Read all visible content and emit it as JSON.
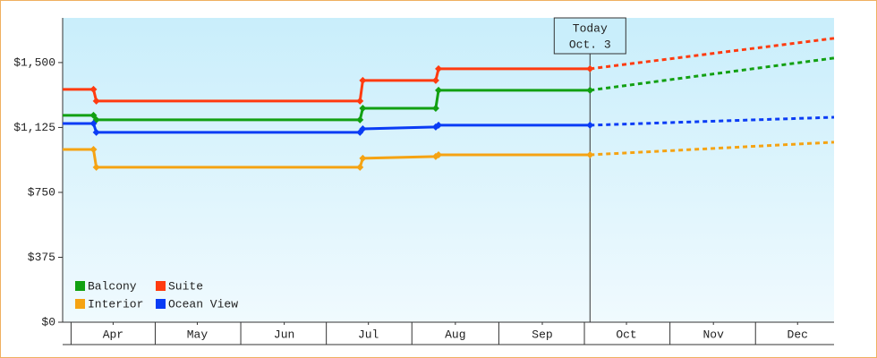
{
  "chart_data": {
    "type": "line",
    "x": [
      88,
      99,
      100,
      194,
      195,
      221,
      222,
      276
    ],
    "forecast_x": [
      276,
      363
    ],
    "series": [
      {
        "name": "Balcony",
        "color": "#12a012",
        "values": [
          1195,
          1195,
          1169,
          1169,
          1236,
          1236,
          1340,
          1340
        ],
        "forecast": [
          1340,
          1526
        ]
      },
      {
        "name": "Suite",
        "color": "#ff3b10",
        "values": [
          1345,
          1345,
          1278,
          1278,
          1397,
          1397,
          1464,
          1464
        ],
        "forecast": [
          1464,
          1640
        ]
      },
      {
        "name": "Interior",
        "color": "#f5a313",
        "values": [
          998,
          998,
          895,
          895,
          947,
          957,
          967,
          967
        ],
        "forecast": [
          967,
          1040
        ]
      },
      {
        "name": "Ocean View",
        "color": "#0a3cf5",
        "values": [
          1148,
          1148,
          1097,
          1097,
          1117,
          1128,
          1138,
          1138
        ],
        "forecast": [
          1138,
          1184
        ]
      }
    ],
    "xlim": [
      88,
      363
    ],
    "ylim": [
      0,
      1758
    ],
    "yticks": [
      {
        "value": 0,
        "label": "$0"
      },
      {
        "value": 375,
        "label": "$375"
      },
      {
        "value": 750,
        "label": "$750"
      },
      {
        "value": 1125,
        "label": "$1,125"
      },
      {
        "value": 1500,
        "label": "$1,500"
      }
    ],
    "xticks": [
      {
        "value": 106,
        "label": "Apr"
      },
      {
        "value": 136,
        "label": "May"
      },
      {
        "value": 167,
        "label": "Jun"
      },
      {
        "value": 197,
        "label": "Jul"
      },
      {
        "value": 228,
        "label": "Aug"
      },
      {
        "value": 259,
        "label": "Sep"
      },
      {
        "value": 289,
        "label": "Oct"
      },
      {
        "value": 320,
        "label": "Nov"
      },
      {
        "value": 350,
        "label": "Dec"
      }
    ],
    "annotation": {
      "x": 276,
      "lines": [
        "Today",
        "Oct. 3"
      ]
    },
    "legend": "bottom-left"
  }
}
